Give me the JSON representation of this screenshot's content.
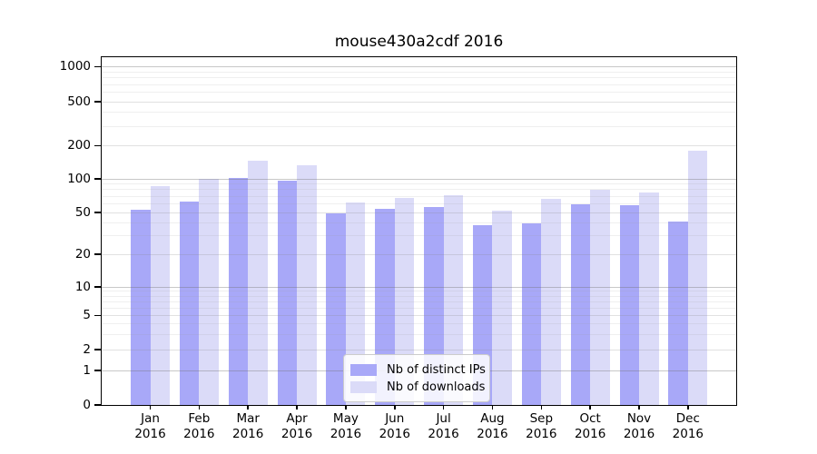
{
  "title": "mouse430a2cdf 2016",
  "x_axis": {
    "months": [
      "Jan",
      "Feb",
      "Mar",
      "Apr",
      "May",
      "Jun",
      "Jul",
      "Aug",
      "Sep",
      "Oct",
      "Nov",
      "Dec"
    ],
    "year": "2016"
  },
  "y_axis": {
    "tick_labels": [
      "0",
      "1",
      "2",
      "5",
      "10",
      "20",
      "50",
      "100",
      "200",
      "500",
      "1000"
    ]
  },
  "legend": {
    "items": [
      {
        "label": "Nb of distinct IPs",
        "color": "#a8a8f8"
      },
      {
        "label": "Nb of downloads",
        "color": "#dbdbf8"
      }
    ]
  },
  "chart_data": {
    "type": "bar",
    "title": "mouse430a2cdf 2016",
    "categories": [
      "Jan 2016",
      "Feb 2016",
      "Mar 2016",
      "Apr 2016",
      "May 2016",
      "Jun 2016",
      "Jul 2016",
      "Aug 2016",
      "Sep 2016",
      "Oct 2016",
      "Nov 2016",
      "Dec 2016"
    ],
    "series": [
      {
        "name": "Nb of distinct IPs",
        "color": "#a8a8f8",
        "values": [
          53,
          63,
          101,
          96,
          49,
          54,
          56,
          38,
          39,
          59,
          58,
          41
        ]
      },
      {
        "name": "Nb of downloads",
        "color": "#dbdbf8",
        "values": [
          86,
          100,
          147,
          133,
          62,
          68,
          72,
          52,
          66,
          80,
          75,
          180
        ]
      }
    ],
    "yscale": "symlog",
    "yticks": [
      0,
      1,
      2,
      5,
      10,
      20,
      50,
      100,
      200,
      500,
      1000
    ],
    "ylim": [
      0,
      1150
    ],
    "grid": true,
    "legend_position": "lower center"
  }
}
